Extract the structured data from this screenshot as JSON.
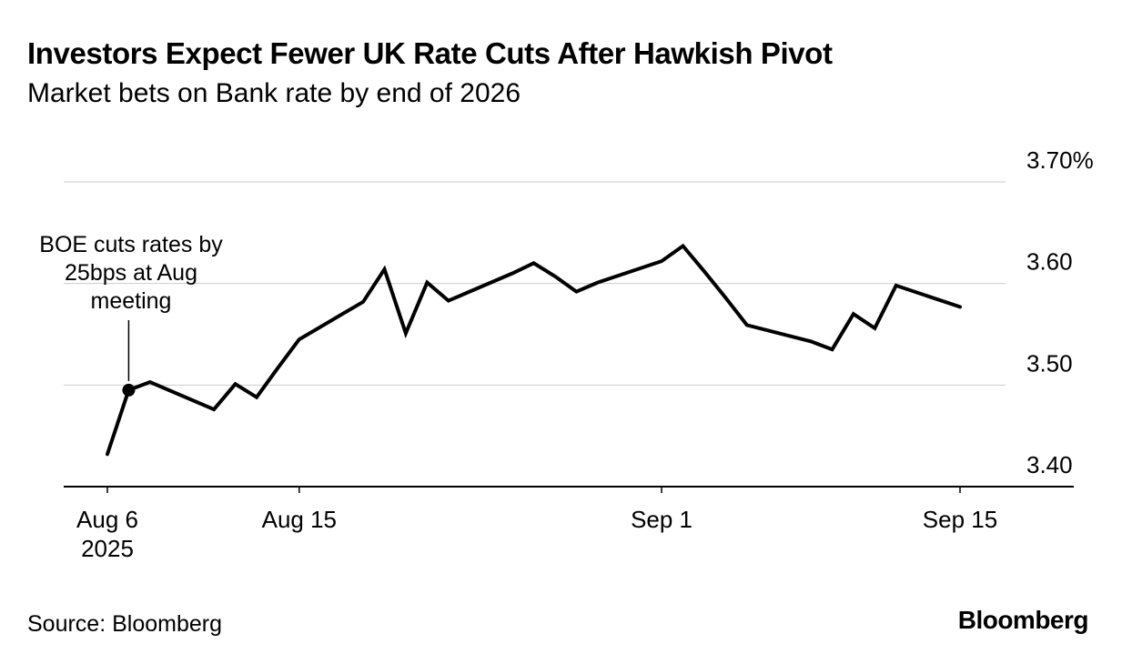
{
  "header": {
    "title": "Investors Expect Fewer UK Rate Cuts After Hawkish Pivot",
    "subtitle": "Market bets on Bank rate by end of 2026"
  },
  "annotation": {
    "lines": [
      "BOE cuts rates by",
      "25bps at Aug",
      "meeting"
    ]
  },
  "footer": {
    "source": "Source: Bloomberg",
    "logo": "Bloomberg"
  },
  "chart_data": {
    "type": "line",
    "title": "Investors Expect Fewer UK Rate Cuts After Hawkish Pivot",
    "subtitle": "Market bets on Bank rate by end of 2026",
    "unit": "%",
    "colors": {
      "line": "#000000",
      "grid": "#cccccc",
      "axis": "#000000",
      "text": "#000000"
    },
    "y_axis": {
      "min": 3.4,
      "max": 3.7,
      "ticks": [
        {
          "value": 3.7,
          "label": "3.70%"
        },
        {
          "value": 3.6,
          "label": "3.60"
        },
        {
          "value": 3.5,
          "label": "3.50"
        },
        {
          "value": 3.4,
          "label": "3.40"
        }
      ]
    },
    "x_axis": {
      "min_day": 0,
      "max_day": 40,
      "ticks": [
        {
          "label": "Aug 6",
          "sub": "2025",
          "day": 0
        },
        {
          "label": "Aug 15",
          "day": 9
        },
        {
          "label": "Sep 1",
          "day": 26
        },
        {
          "label": "Sep 15",
          "day": 40
        }
      ]
    },
    "series": [
      {
        "name": "Bank rate by end of 2026",
        "color": "#000000",
        "points": [
          {
            "date": "Aug 6",
            "day": 0,
            "value": 3.432
          },
          {
            "date": "Aug 7",
            "day": 1,
            "value": 3.495
          },
          {
            "date": "Aug 8",
            "day": 2,
            "value": 3.503
          },
          {
            "date": "Aug 11",
            "day": 5,
            "value": 3.476
          },
          {
            "date": "Aug 12",
            "day": 6,
            "value": 3.501
          },
          {
            "date": "Aug 13",
            "day": 7,
            "value": 3.488
          },
          {
            "date": "Aug 14",
            "day": 8,
            "value": 3.517
          },
          {
            "date": "Aug 15",
            "day": 9,
            "value": 3.545
          },
          {
            "date": "Aug 18",
            "day": 12,
            "value": 3.582
          },
          {
            "date": "Aug 19",
            "day": 13,
            "value": 3.614
          },
          {
            "date": "Aug 20",
            "day": 14,
            "value": 3.551
          },
          {
            "date": "Aug 21",
            "day": 15,
            "value": 3.601
          },
          {
            "date": "Aug 22",
            "day": 16,
            "value": 3.583
          },
          {
            "date": "Aug 25",
            "day": 19,
            "value": 3.61
          },
          {
            "date": "Aug 26",
            "day": 20,
            "value": 3.62
          },
          {
            "date": "Aug 27",
            "day": 21,
            "value": 3.607
          },
          {
            "date": "Aug 28",
            "day": 22,
            "value": 3.592
          },
          {
            "date": "Aug 29",
            "day": 23,
            "value": 3.601
          },
          {
            "date": "Sep 1",
            "day": 26,
            "value": 3.622
          },
          {
            "date": "Sep 2",
            "day": 27,
            "value": 3.637
          },
          {
            "date": "Sep 3",
            "day": 28,
            "value": 3.612
          },
          {
            "date": "Sep 4",
            "day": 29,
            "value": 3.586
          },
          {
            "date": "Sep 5",
            "day": 30,
            "value": 3.559
          },
          {
            "date": "Sep 8",
            "day": 33,
            "value": 3.543
          },
          {
            "date": "Sep 9",
            "day": 34,
            "value": 3.535
          },
          {
            "date": "Sep 10",
            "day": 35,
            "value": 3.57
          },
          {
            "date": "Sep 11",
            "day": 36,
            "value": 3.556
          },
          {
            "date": "Sep 12",
            "day": 37,
            "value": 3.598
          },
          {
            "date": "Sep 15",
            "day": 40,
            "value": 3.577
          }
        ]
      }
    ],
    "marker": {
      "label": "BOE cuts rates by 25bps at Aug meeting",
      "date": "Aug 7",
      "day": 1,
      "value": 3.495
    }
  }
}
